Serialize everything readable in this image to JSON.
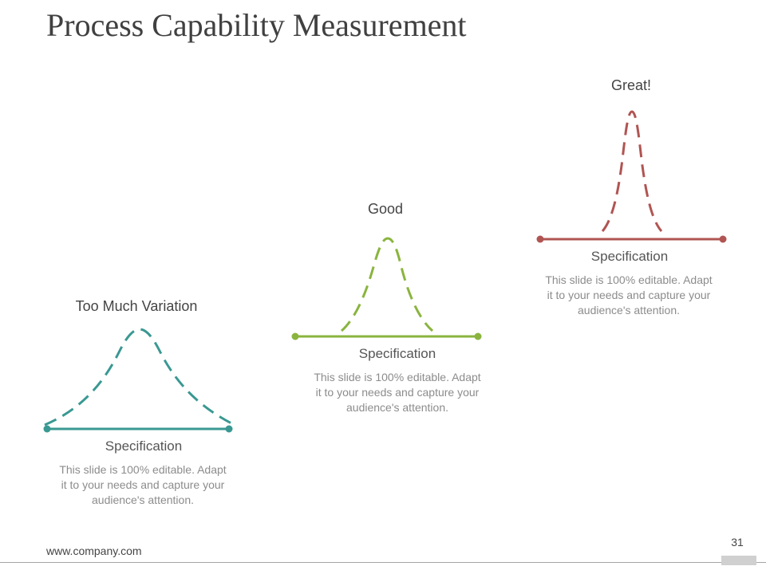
{
  "slide": {
    "title": "Process Capability Measurement",
    "footer_url": "www.company.com",
    "page_number": "31"
  },
  "panels": [
    {
      "label": "Too Much Variation",
      "spec_label": "Specification",
      "description": "This slide is 100% editable. Adapt it to your needs and capture your audience's attention.",
      "color": "#3a9892"
    },
    {
      "label": "Good",
      "spec_label": "Specification",
      "description": "This slide is 100% editable. Adapt it to your needs and capture your audience's attention.",
      "color": "#8ab43e"
    },
    {
      "label": "Great!",
      "spec_label": "Specification",
      "description": "This slide is 100% editable. Adapt it to your needs and capture your audience's attention.",
      "color": "#b05553"
    }
  ]
}
